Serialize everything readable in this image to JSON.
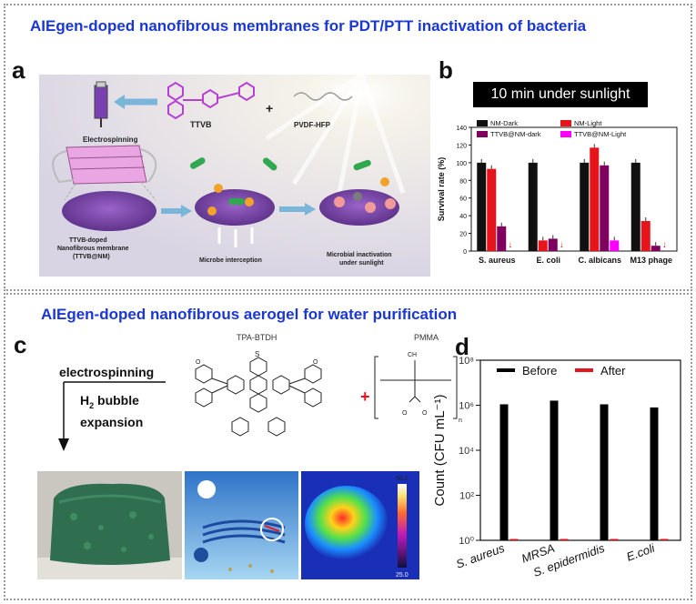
{
  "top": {
    "title": "AIEgen-doped nanofibrous membranes for PDT/PTT  inactivation of bacteria",
    "panel_a": {
      "letter": "a",
      "labels": {
        "electrospinning": "Electrospinning",
        "ttvb": "TTVB",
        "plus": "+",
        "pvdf": "PVDF-HFP",
        "membrane_line1": "TTVB-doped",
        "membrane_line2": "Nanofibrous membrane",
        "membrane_line3": "(TTVB@NM)",
        "interception": "Microbe interception",
        "inactivation_line1": "Microbial inactivation",
        "inactivation_line2": "under sunlight"
      }
    },
    "panel_b": {
      "letter": "b",
      "banner": "10 min under sunlight"
    }
  },
  "bottom": {
    "title": "AIEgen-doped nanofibrous aerogel for water purification",
    "panel_c": {
      "letter": "c",
      "molecule": "TPA-BTDH",
      "polymer": "PMMA",
      "step_line1": "electrospinning",
      "step_line2": "H",
      "step_sub": "2",
      "step_line2b": " bubble",
      "step_line3": "expansion",
      "plus": "+",
      "colorbar_max": "50.0",
      "colorbar_min": "25.0"
    },
    "panel_d": {
      "letter": "d"
    }
  },
  "chart_data": [
    {
      "type": "bar",
      "ylabel": "Survival rate (%)",
      "ylim": [
        0,
        140
      ],
      "yticks": [
        "0",
        "20",
        "40",
        "60",
        "80",
        "100",
        "120",
        "140"
      ],
      "categories": [
        "S. aureus",
        "E. coli",
        "C. albicans",
        "M13 phage"
      ],
      "legend": "top",
      "series": [
        {
          "name": "NM-Dark",
          "color": "#111111",
          "values": [
            100,
            100,
            100,
            100
          ]
        },
        {
          "name": "NM-Light",
          "color": "#e8141c",
          "values": [
            93,
            12,
            117,
            34
          ]
        },
        {
          "name": "TTVB@NM-dark",
          "color": "#800060",
          "values": [
            28,
            14,
            97,
            6
          ]
        },
        {
          "name": "TTVB@NM-Light",
          "color": "#ff00ff",
          "values": [
            0,
            0,
            12,
            0
          ]
        }
      ]
    },
    {
      "type": "bar",
      "ylabel": "Count (CFU mL⁻¹)",
      "yscale": "log",
      "ylim": [
        1,
        100000000
      ],
      "yticks": [
        "10⁰",
        "10²",
        "10⁴",
        "10⁶",
        "10⁸"
      ],
      "categories": [
        "S. aureus",
        "MRSA",
        "S. epidermidis",
        "E.coli"
      ],
      "legend": "top",
      "series": [
        {
          "name": "Before",
          "color": "#000000",
          "values": [
            1100000,
            1600000,
            1100000,
            800000
          ]
        },
        {
          "name": "After",
          "color": "#e8141c",
          "values": [
            1,
            1,
            1,
            1
          ]
        }
      ]
    }
  ]
}
